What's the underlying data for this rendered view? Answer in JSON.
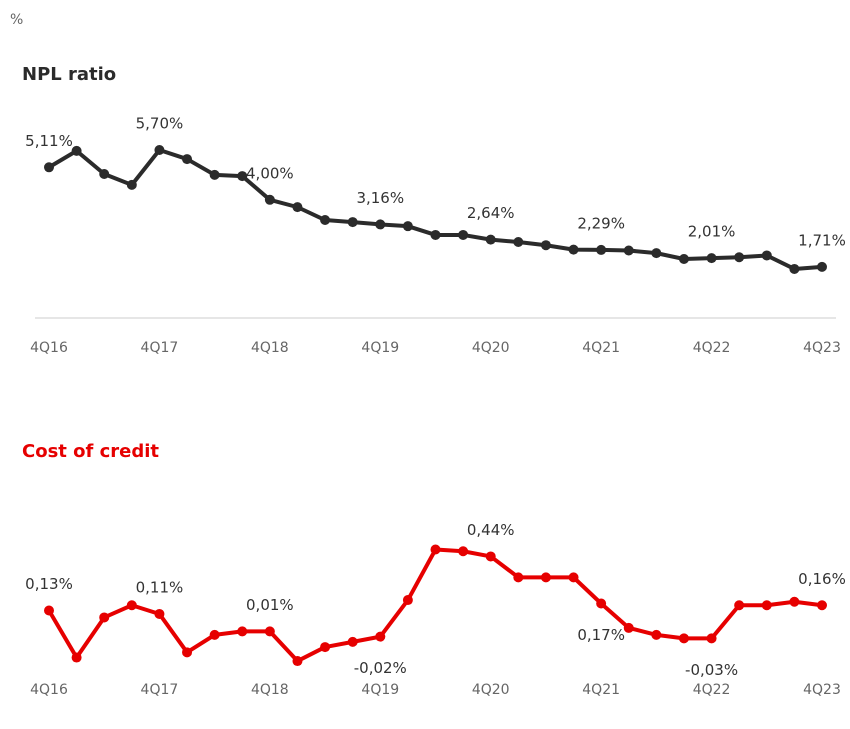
{
  "unit": "%",
  "chart_data": [
    {
      "type": "line",
      "title": "NPL ratio",
      "color": "#2b2b2b",
      "categories": [
        "4Q16",
        null,
        null,
        null,
        "4Q17",
        null,
        null,
        null,
        "4Q18",
        null,
        null,
        null,
        "4Q19",
        null,
        null,
        null,
        "4Q20",
        null,
        null,
        null,
        "4Q21",
        null,
        null,
        null,
        "4Q22",
        null,
        null,
        null,
        "4Q23"
      ],
      "values": [
        5.11,
        5.67,
        4.88,
        4.51,
        5.7,
        5.39,
        4.85,
        4.81,
        4.0,
        3.75,
        3.31,
        3.24,
        3.16,
        3.1,
        2.8,
        2.8,
        2.64,
        2.56,
        2.45,
        2.3,
        2.29,
        2.27,
        2.18,
        1.98,
        2.01,
        2.04,
        2.1,
        1.64,
        1.71
      ],
      "value_labels": [
        "5,11%",
        null,
        null,
        null,
        "5,70%",
        null,
        null,
        null,
        "4,00%",
        null,
        null,
        null,
        "3,16%",
        null,
        null,
        null,
        "2,64%",
        null,
        null,
        null,
        "2,29%",
        null,
        null,
        null,
        "2,01%",
        null,
        null,
        null,
        "1,71%"
      ],
      "ylim": [
        0,
        6
      ],
      "baseline": true
    },
    {
      "type": "line",
      "title": "Cost of credit",
      "color": "#e60000",
      "categories": [
        "4Q16",
        null,
        null,
        null,
        "4Q17",
        null,
        null,
        null,
        "4Q18",
        null,
        null,
        null,
        "4Q19",
        null,
        null,
        null,
        "4Q20",
        null,
        null,
        null,
        "4Q21",
        null,
        null,
        null,
        "4Q22",
        null,
        null,
        null,
        "4Q23"
      ],
      "values": [
        0.13,
        -0.14,
        0.09,
        0.16,
        0.11,
        -0.11,
        -0.01,
        0.01,
        0.01,
        -0.16,
        -0.08,
        -0.05,
        -0.02,
        0.19,
        0.48,
        0.47,
        0.44,
        0.32,
        0.32,
        0.32,
        0.17,
        0.03,
        -0.01,
        -0.03,
        -0.03,
        0.16,
        0.16,
        0.18,
        0.16
      ],
      "value_labels": [
        "0,13%",
        null,
        null,
        null,
        "0,11%",
        null,
        null,
        null,
        "0,01%",
        null,
        null,
        null,
        "-0,02%",
        null,
        null,
        null,
        "0,44%",
        null,
        null,
        null,
        "0,17%",
        null,
        null,
        null,
        "-0,03%",
        null,
        null,
        null,
        "0,16%"
      ],
      "ylim": [
        -0.2,
        0.5
      ],
      "baseline": false
    }
  ]
}
